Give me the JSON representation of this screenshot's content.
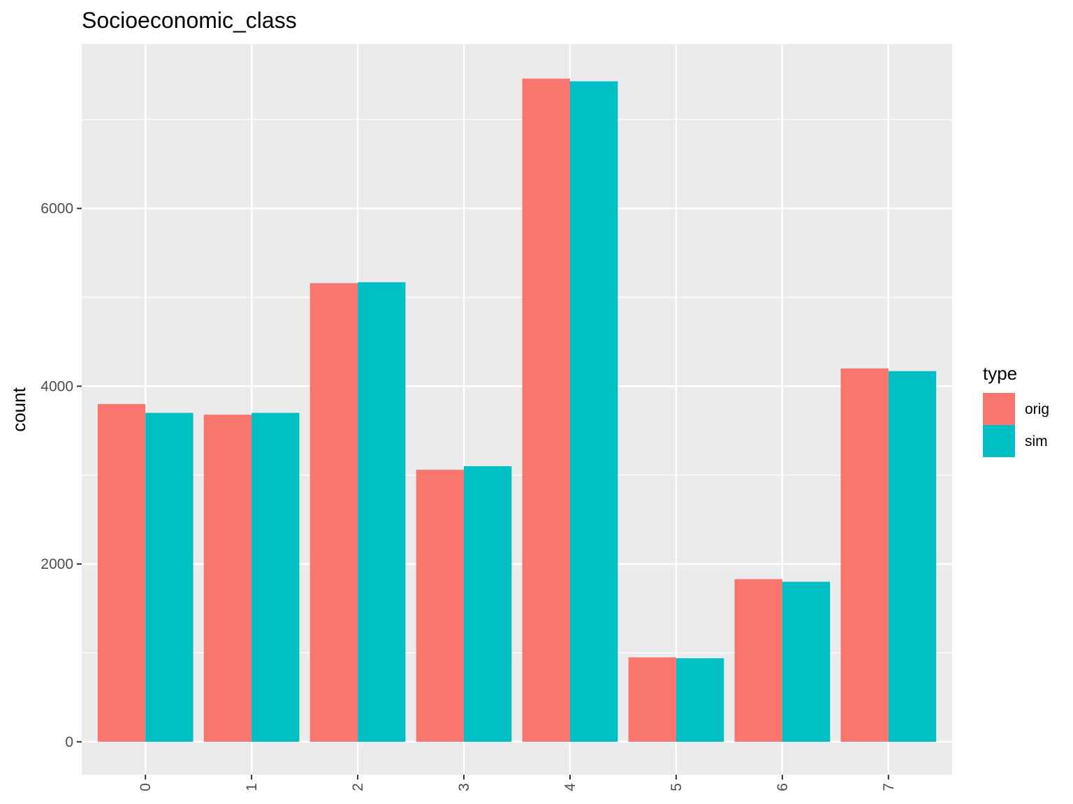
{
  "chart_data": {
    "type": "bar",
    "title": "Socioeconomic_class",
    "xlabel": "",
    "ylabel": "count",
    "categories": [
      "0",
      "1",
      "2",
      "3",
      "4",
      "5",
      "6",
      "7"
    ],
    "series": [
      {
        "name": "orig",
        "color": "#F8766D",
        "values": [
          3800,
          3680,
          5160,
          3060,
          7460,
          950,
          1830,
          4200
        ]
      },
      {
        "name": "sim",
        "color": "#00BFC4",
        "values": [
          3700,
          3700,
          5170,
          3100,
          7430,
          940,
          1800,
          4170
        ]
      }
    ],
    "ylim": [
      -370,
      7850
    ],
    "yticks": [
      0,
      2000,
      4000,
      6000
    ],
    "legend_title": "type",
    "legend_position": "right",
    "grid": true,
    "panel_color": "#EBEBEB",
    "x_tick_rotation": "vertical"
  }
}
